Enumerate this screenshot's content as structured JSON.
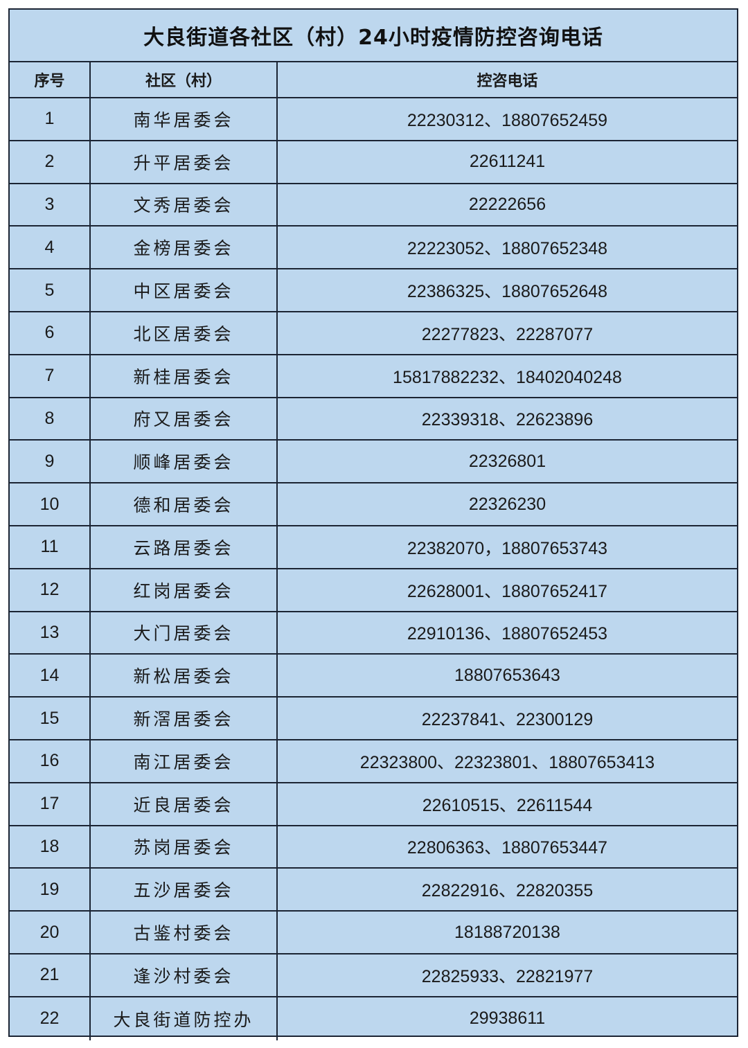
{
  "title": "大良街道各社区（村）24小时疫情防控咨询电话",
  "headers": [
    "序号",
    "社区（村）",
    "控咨电话"
  ],
  "colors": {
    "cell_background": "#bdd7ee",
    "border": "#1b2433"
  },
  "rows": [
    {
      "no": "1",
      "community": "南华居委会",
      "phone": "22230312、18807652459"
    },
    {
      "no": "2",
      "community": "升平居委会",
      "phone": "22611241"
    },
    {
      "no": "3",
      "community": "文秀居委会",
      "phone": "22222656"
    },
    {
      "no": "4",
      "community": "金榜居委会",
      "phone": "22223052、18807652348"
    },
    {
      "no": "5",
      "community": "中区居委会",
      "phone": "22386325、18807652648"
    },
    {
      "no": "6",
      "community": "北区居委会",
      "phone": "22277823、22287077"
    },
    {
      "no": "7",
      "community": "新桂居委会",
      "phone": "15817882232、18402040248"
    },
    {
      "no": "8",
      "community": "府又居委会",
      "phone": "22339318、22623896"
    },
    {
      "no": "9",
      "community": "顺峰居委会",
      "phone": "22326801"
    },
    {
      "no": "10",
      "community": "德和居委会",
      "phone": "22326230"
    },
    {
      "no": "11",
      "community": "云路居委会",
      "phone": "22382070，18807653743"
    },
    {
      "no": "12",
      "community": "红岗居委会",
      "phone": "22628001、18807652417"
    },
    {
      "no": "13",
      "community": "大门居委会",
      "phone": "22910136、18807652453"
    },
    {
      "no": "14",
      "community": "新松居委会",
      "phone": "18807653643"
    },
    {
      "no": "15",
      "community": "新滘居委会",
      "phone": "22237841、22300129"
    },
    {
      "no": "16",
      "community": "南江居委会",
      "phone": "22323800、22323801、18807653413"
    },
    {
      "no": "17",
      "community": "近良居委会",
      "phone": "22610515、22611544"
    },
    {
      "no": "18",
      "community": "苏岗居委会",
      "phone": "22806363、18807653447"
    },
    {
      "no": "19",
      "community": "五沙居委会",
      "phone": "22822916、22820355"
    },
    {
      "no": "20",
      "community": "古鉴村委会",
      "phone": "18188720138"
    },
    {
      "no": "21",
      "community": "逢沙村委会",
      "phone": "22825933、22821977"
    },
    {
      "no": "22",
      "community": "大良街道防控办",
      "phone": "29938611"
    }
  ]
}
